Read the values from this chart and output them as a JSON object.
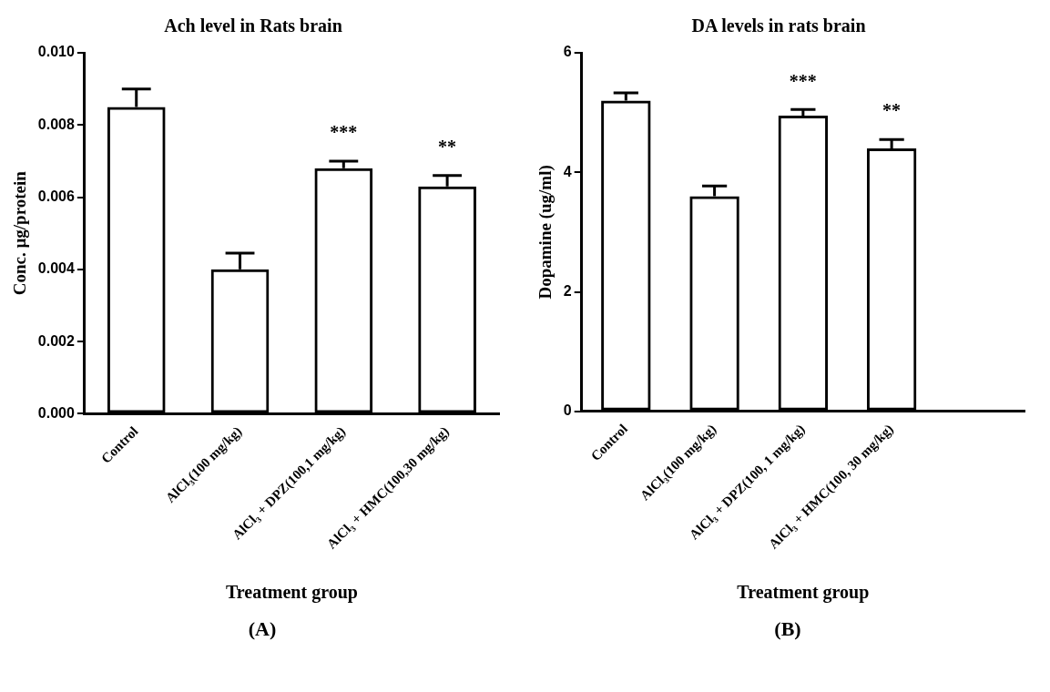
{
  "chart_data": [
    {
      "type": "bar",
      "title": "Ach level in Rats brain",
      "xlabel": "Treatment group",
      "ylabel": "Conc. µg/protein",
      "categories": [
        "Control",
        "AlCl₃(100 mg/kg)",
        "AlCl₃ + DPZ(100,1 mg/kg)",
        "AlCl₃ + HMC(100,30 mg/kg)"
      ],
      "values": [
        0.0085,
        0.004,
        0.0068,
        0.0063
      ],
      "color": "#000000",
      "errors": [
        [
          0.0085,
          0.009
        ],
        [
          0.004,
          0.00445
        ],
        [
          0.0068,
          0.007
        ],
        [
          0.0063,
          0.0066
        ]
      ],
      "ylim": [
        0,
        0.01
      ],
      "yticks": [
        {
          "value": 0,
          "label": "0.000"
        },
        {
          "value": 0.002,
          "label": "0.002"
        },
        {
          "value": 0.004,
          "label": "0.004"
        },
        {
          "value": 0.006,
          "label": "0.006"
        },
        {
          "value": 0.008,
          "label": "0.008"
        },
        {
          "value": 0.01,
          "label": "0.010"
        }
      ],
      "grid": false,
      "legend": false,
      "annotations": [
        {
          "text": "***",
          "x": "AlCl₃ + DPZ(100,1 mg/kg)",
          "y": 0.0068
        },
        {
          "text": "**",
          "x": "AlCl₃ + HMC(100,30 mg/kg)",
          "y": 0.0063
        },
        "(A)"
      ]
    },
    {
      "type": "bar",
      "title": "DA levels in rats brain",
      "xlabel": "Treatment group",
      "ylabel": "Dopamine (ug/ml)",
      "categories": [
        "Control",
        "AlCl₃(100 mg/kg)",
        "AlCl₃ + DPZ(100, 1 mg/kg)",
        "AlCl₃ + HMC(100, 30 mg/kg)",
        null
      ],
      "values": [
        5.2,
        3.6,
        4.95,
        4.4,
        null
      ],
      "color": "#000000",
      "errors": [
        [
          5.2,
          5.33
        ],
        [
          3.6,
          3.77
        ],
        [
          4.95,
          5.05
        ],
        [
          4.4,
          4.55
        ],
        null
      ],
      "ylim": [
        0,
        6
      ],
      "yticks": [
        0,
        2,
        4,
        6
      ],
      "grid": false,
      "legend": false,
      "annotations": [
        {
          "text": "***",
          "x": "AlCl₃ + DPZ(100, 1 mg/kg)",
          "y": 4.95
        },
        {
          "text": "**",
          "x": "AlCl₃ + HMC(100, 30 mg/kg)",
          "y": 4.4
        },
        "(B)"
      ]
    }
  ]
}
